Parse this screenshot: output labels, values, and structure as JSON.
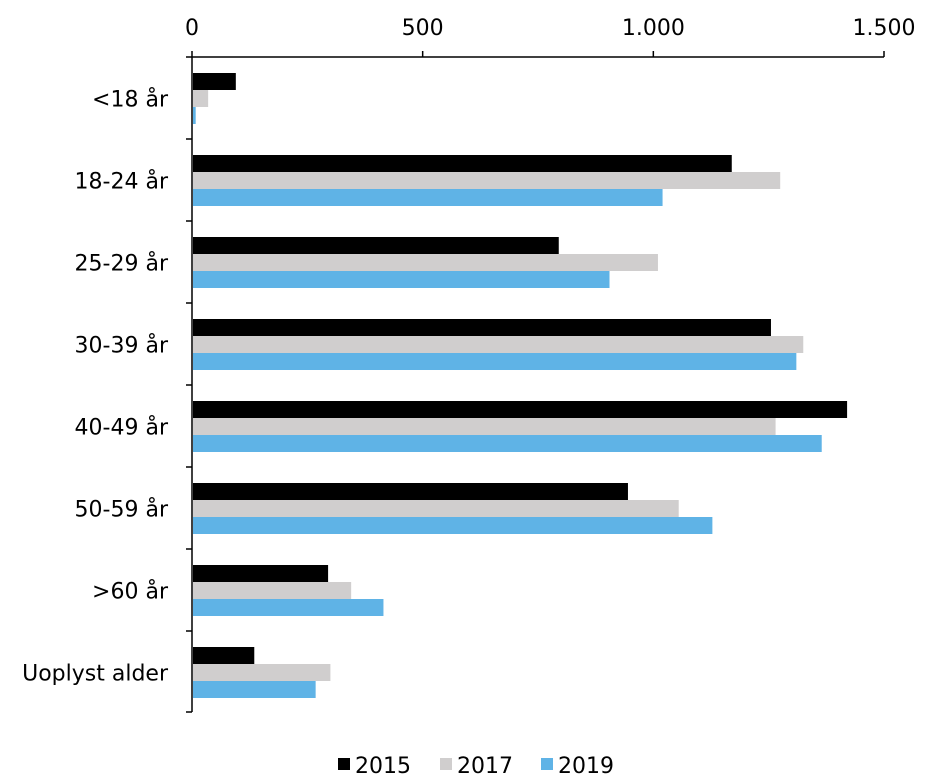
{
  "chart_data": {
    "type": "bar",
    "orientation": "horizontal",
    "categories": [
      "<18 år",
      "18-24 år",
      "25-29 år",
      "30-39 år",
      "40-49 år",
      "50-59 år",
      ">60 år",
      "Uoplyst alder"
    ],
    "series": [
      {
        "name": "2015",
        "color": "#000000",
        "values": [
          95,
          1170,
          795,
          1255,
          1420,
          945,
          295,
          135
        ]
      },
      {
        "name": "2017",
        "color": "#d0cece",
        "values": [
          35,
          1275,
          1010,
          1325,
          1265,
          1055,
          345,
          300
        ]
      },
      {
        "name": "2019",
        "color": "#5fb3e6",
        "values": [
          8,
          1020,
          905,
          1310,
          1365,
          1128,
          415,
          268
        ]
      }
    ],
    "xaxis": {
      "position": "top",
      "range": [
        0,
        1500
      ],
      "ticks": [
        0,
        500,
        1000,
        1500
      ],
      "tick_labels": [
        "0",
        "500",
        "1.000",
        "1.500"
      ]
    },
    "grid": false,
    "legend": {
      "position": "bottom"
    }
  }
}
